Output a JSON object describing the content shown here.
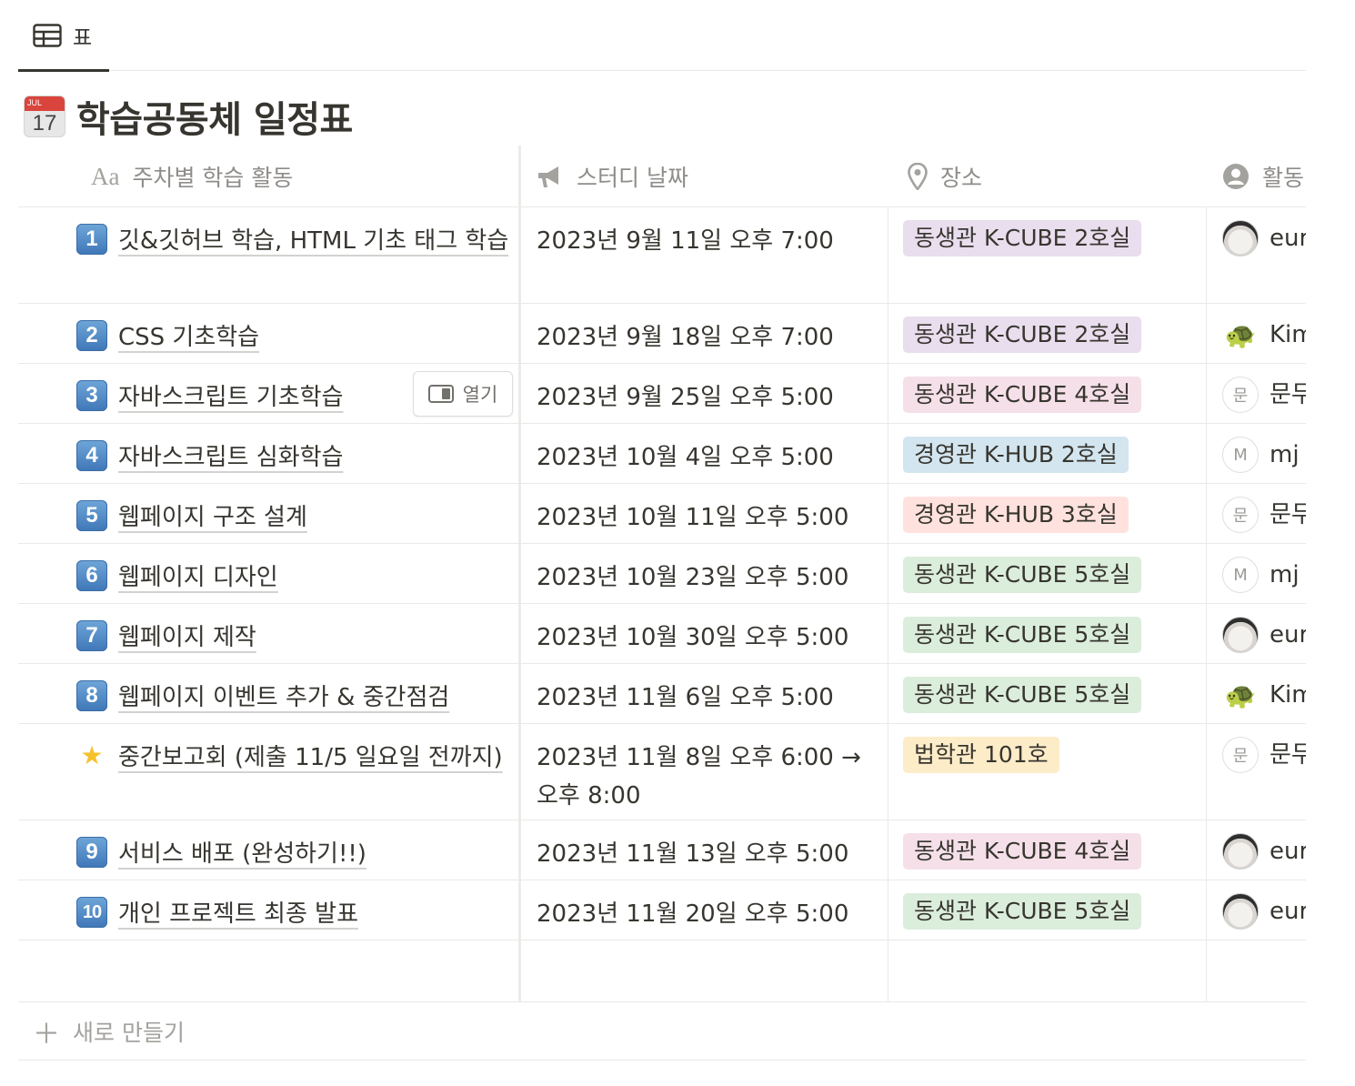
{
  "view_tab": {
    "label": "표",
    "icon": "table-icon"
  },
  "page": {
    "title": "학습공동체 일정표",
    "icon": "calendar-icon",
    "icon_month": "JUL",
    "icon_day": "17"
  },
  "columns": [
    {
      "label": "주차별 학습 활동",
      "icon": "aa-title-icon",
      "icon_text": "Aa"
    },
    {
      "label": "스터디 날짜",
      "icon": "megaphone-icon"
    },
    {
      "label": "장소",
      "icon": "map-pin-icon"
    },
    {
      "label": "활동",
      "icon": "person-icon"
    }
  ],
  "colors": {
    "purple": "#e8deee",
    "pink": "#f5e0e9",
    "blue": "#d3e5ef",
    "red": "#ffe2dd",
    "green": "#dbeddb",
    "yellow": "#fdecc8"
  },
  "rows": [
    {
      "badge": "1",
      "name": "깃&깃허브 학습, HTML 기초 태그 학습",
      "date": "2023년 9월 11일 오후 7:00",
      "place": "동생관 K-CUBE 2호실",
      "place_color": "#e8deee",
      "person": "eur",
      "avatar": "dog"
    },
    {
      "badge": "2",
      "name": "CSS 기초학습",
      "date": "2023년 9월 18일 오후 7:00",
      "place": "동생관 K-CUBE 2호실",
      "place_color": "#e8deee",
      "person": "Kim",
      "avatar": "turtle"
    },
    {
      "badge": "3",
      "name": "자바스크립트 기초학습",
      "date": "2023년 9월 25일 오후 5:00",
      "place": "동생관 K-CUBE 4호실",
      "place_color": "#f5e0e9",
      "person": "문두",
      "avatar": "letter",
      "avatar_letter": "문"
    },
    {
      "badge": "4",
      "name": "자바스크립트 심화학습",
      "date": "2023년 10월 4일 오후 5:00",
      "place": "경영관 K-HUB 2호실",
      "place_color": "#d3e5ef",
      "person": "mj",
      "avatar": "letter",
      "avatar_letter": "M"
    },
    {
      "badge": "5",
      "name": "웹페이지 구조 설계",
      "date": "2023년 10월 11일 오후 5:00",
      "place": "경영관 K-HUB 3호실",
      "place_color": "#ffe2dd",
      "person": "문두",
      "avatar": "letter",
      "avatar_letter": "문"
    },
    {
      "badge": "6",
      "name": "웹페이지 디자인",
      "date": "2023년 10월 23일 오후 5:00",
      "place": "동생관 K-CUBE 5호실",
      "place_color": "#dbeddb",
      "person": "mj",
      "avatar": "letter",
      "avatar_letter": "M"
    },
    {
      "badge": "7",
      "name": "웹페이지 제작",
      "date": "2023년 10월 30일 오후 5:00",
      "place": "동생관 K-CUBE 5호실",
      "place_color": "#dbeddb",
      "person": "eur",
      "avatar": "dog"
    },
    {
      "badge": "8",
      "name": "웹페이지 이벤트 추가 & 중간점검",
      "date": "2023년 11월 6일 오후 5:00",
      "place": "동생관 K-CUBE 5호실",
      "place_color": "#dbeddb",
      "person": "Kim",
      "avatar": "turtle"
    },
    {
      "badge": "star",
      "name": "중간보고회 (제출 11/5 일요일 전까지)",
      "date": "2023년 11월 8일 오후 6:00 → 오후 8:00",
      "place": "법학관 101호",
      "place_color": "#fdecc8",
      "person": "문두",
      "avatar": "letter",
      "avatar_letter": "문"
    },
    {
      "badge": "9",
      "name": "서비스 배포 (완성하기!!)",
      "date": "2023년 11월 13일 오후 5:00",
      "place": "동생관 K-CUBE 4호실",
      "place_color": "#f5e0e9",
      "person": "eur",
      "avatar": "dog"
    },
    {
      "badge": "10",
      "name": "개인 프로젝트 최종 발표",
      "date": "2023년 11월 20일 오후 5:00",
      "place": "동생관 K-CUBE 5호실",
      "place_color": "#dbeddb",
      "person": "eur",
      "avatar": "dog"
    }
  ],
  "hover_open": {
    "label": "열기",
    "row": 2
  },
  "new_row": {
    "label": "새로 만들기"
  }
}
